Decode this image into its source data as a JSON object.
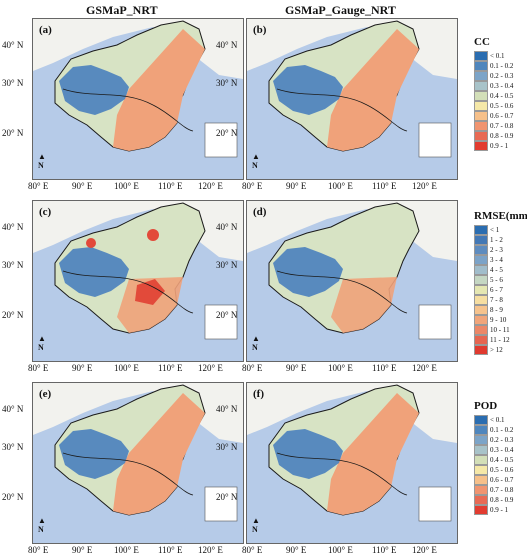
{
  "column_titles": {
    "left": "GSMaP_NRT",
    "right": "GSMaP_Gauge_NRT"
  },
  "panels": [
    {
      "label": "(a)",
      "metric": "CC"
    },
    {
      "label": "(b)",
      "metric": "CC"
    },
    {
      "label": "(c)",
      "metric": "RMSE"
    },
    {
      "label": "(d)",
      "metric": "RMSE"
    },
    {
      "label": "(e)",
      "metric": "POD"
    },
    {
      "label": "(f)",
      "metric": "POD"
    }
  ],
  "lat_labels": [
    "40° N",
    "30° N",
    "20° N"
  ],
  "lon_labels": [
    "80° E",
    "90° E",
    "100° E",
    "110° E",
    "120° E"
  ],
  "north_label": "N",
  "legends": {
    "cc": {
      "title": "CC",
      "items": [
        "< 0.1",
        "0.1 - 0.2",
        "0.2 - 0.3",
        "0.3 - 0.4",
        "0.4 - 0.5",
        "0.5 - 0.6",
        "0.6 - 0.7",
        "0.7 - 0.8",
        "0.8 - 0.9",
        "0.9 - 1"
      ],
      "colors": [
        "#2b6db0",
        "#4f86bd",
        "#7ca4c8",
        "#a8c3c9",
        "#d3dfb8",
        "#f5e8a8",
        "#f6c08a",
        "#f09470",
        "#e86a54",
        "#e23c30"
      ]
    },
    "rmse": {
      "title": "RMSE(mm)",
      "items": [
        "< 1",
        "1 - 2",
        "2 - 3",
        "3 - 4",
        "4 - 5",
        "5 - 6",
        "6 - 7",
        "7 - 8",
        "8 - 9",
        "9 - 10",
        "10 - 11",
        "11 - 12",
        "> 12"
      ],
      "colors": [
        "#2b6db0",
        "#4378b5",
        "#5e8cbf",
        "#7ca3c8",
        "#a1bdcb",
        "#c5d7c3",
        "#e5e7b2",
        "#f6dea1",
        "#f6c38d",
        "#f1a57a",
        "#ec8767",
        "#e66550",
        "#e03a2f"
      ]
    },
    "pod": {
      "title": "POD",
      "items": [
        "< 0.1",
        "0.1 - 0.2",
        "0.2 - 0.3",
        "0.3 - 0.4",
        "0.4 - 0.5",
        "0.5 - 0.6",
        "0.6 - 0.7",
        "0.7 - 0.8",
        "0.8 - 0.9",
        "0.9 - 1"
      ],
      "colors": [
        "#2b6db0",
        "#4f86bd",
        "#7ca4c8",
        "#a8c3c9",
        "#d3dfb8",
        "#f5e8a8",
        "#f6c08a",
        "#f09470",
        "#e86a54",
        "#e23c30"
      ]
    }
  },
  "map_colors": {
    "sea": "#b6cbe8",
    "neighbor_land": "#f2f2ee",
    "boundary": "#1a1a1a",
    "plateau_blue": "#4a7fbe",
    "light": "#d7e3c4",
    "orange": "#f0a27a",
    "red": "#e24a3a"
  }
}
